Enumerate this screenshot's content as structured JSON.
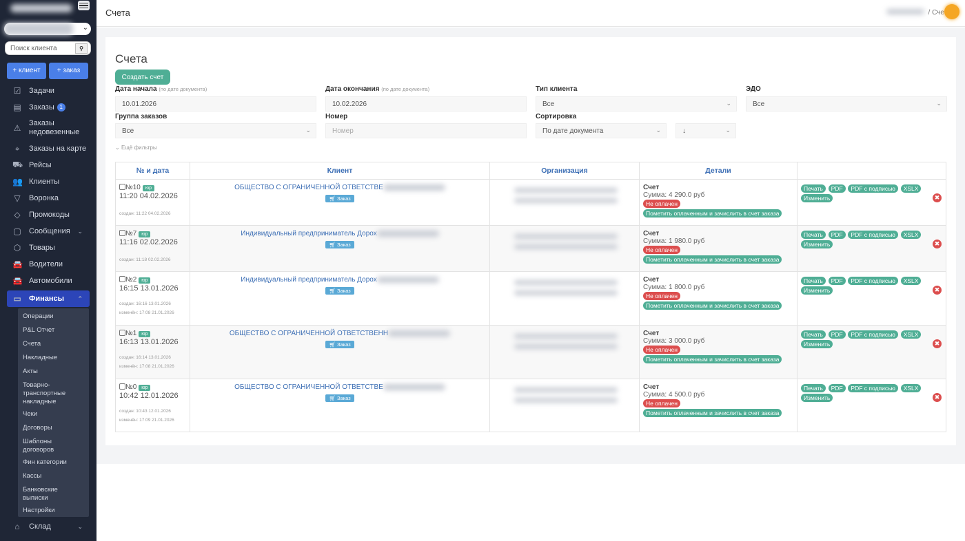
{
  "sidebar": {
    "search_placeholder": "Поиск клиента",
    "add_client": "+ клиент",
    "add_order": "+ заказ",
    "items": [
      {
        "label": "Задачи",
        "icon": "checkbox-icon"
      },
      {
        "label": "Заказы",
        "icon": "clipboard-icon",
        "badge": "1"
      },
      {
        "label": "Заказы недовезенные",
        "icon": "warning-icon"
      },
      {
        "label": "Заказы на карте",
        "icon": "map-pin-icon"
      },
      {
        "label": "Рейсы",
        "icon": "truck-icon"
      },
      {
        "label": "Клиенты",
        "icon": "users-icon"
      },
      {
        "label": "Воронка",
        "icon": "funnel-icon"
      },
      {
        "label": "Промокоды",
        "icon": "tag-icon"
      },
      {
        "label": "Сообщения",
        "icon": "chat-icon",
        "expand": true
      },
      {
        "label": "Товары",
        "icon": "box-icon"
      },
      {
        "label": "Водители",
        "icon": "car-icon"
      },
      {
        "label": "Автомобили",
        "icon": "car-icon"
      },
      {
        "label": "Финансы",
        "icon": "card-icon",
        "active": true
      }
    ],
    "finance_sub": [
      "Операции",
      "P&L Отчет",
      "Счета",
      "Накладные",
      "Акты",
      "Товарно-транспортные накладные",
      "Чеки",
      "Договоры",
      "Шаблоны договоров",
      "Фин категории",
      "Кассы",
      "Банковские выписки",
      "Настройки"
    ],
    "after": {
      "label": "Склад",
      "icon": "warehouse-icon"
    }
  },
  "header": {
    "title": "Счета",
    "breadcrumb_current": "Сче"
  },
  "page": {
    "title": "Счета",
    "create_button": "Создать счет",
    "more_filters": "Ещё фильтры",
    "filters": {
      "start_label": "Дата начала",
      "start_hint": "(по дате документа)",
      "start_value": "10.01.2026",
      "end_label": "Дата окончания",
      "end_hint": "(по дате документа)",
      "end_value": "10.02.2026",
      "client_type_label": "Тип клиента",
      "client_type_value": "Все",
      "edo_label": "ЭДО",
      "edo_value": "Все",
      "group_label": "Группа заказов",
      "group_value": "Все",
      "number_label": "Номер",
      "number_placeholder": "Номер",
      "sort_label": "Сортировка",
      "sort_value": "По дате документа",
      "sort_dir": "↓"
    }
  },
  "table": {
    "headers": [
      "№ и дата",
      "Клиент",
      "Организация",
      "Детали",
      ""
    ],
    "doc_label": "Счет",
    "unpaid": "Не оплачен",
    "mark_paid": "Пометить оплаченным и зачислить в счет заказа",
    "order_label": "Заказ",
    "type_badge": "юр",
    "actions": [
      "Печать",
      "PDF",
      "PDF с подписью",
      "XSLX",
      "Изменить"
    ],
    "rows": [
      {
        "number": "№10",
        "datetime": "11:20 04.02.2026",
        "created": "создан: 11:22 04.02.2026",
        "client": "ОБЩЕСТВО С ОГРАНИЧЕННОЙ ОТВЕТСТВЕ",
        "sum": "Сумма: 4 290.0 руб"
      },
      {
        "number": "№7",
        "datetime": "11:16 02.02.2026",
        "created": "создан: 11:18 02.02.2026",
        "client": "Индивидуальный предприниматель Дорох",
        "sum": "Сумма: 1 980.0 руб"
      },
      {
        "number": "№2",
        "datetime": "16:15 13.01.2026",
        "created": "создан: 16:16 13.01.2026",
        "modified": "изменён: 17:08 21.01.2026",
        "client": "Индивидуальный предприниматель Дорох",
        "sum": "Сумма: 1 800.0 руб"
      },
      {
        "number": "№1",
        "datetime": "16:13 13.01.2026",
        "created": "создан: 16:14 13.01.2026",
        "modified": "изменён: 17:08 21.01.2026",
        "client": "ОБЩЕСТВО С ОГРАНИЧЕННОЙ ОТВЕТСТВЕНН",
        "sum": "Сумма: 3 000.0 руб"
      },
      {
        "number": "№0",
        "datetime": "10:42 12.01.2026",
        "created": "создан: 10:43 12.01.2026",
        "modified": "изменён: 17:09 21.01.2026",
        "client": "ОБЩЕСТВО С ОГРАНИЧЕННОЙ ОТВЕТСТВЕ",
        "sum": "Сумма: 4 500.0 руб"
      }
    ]
  }
}
